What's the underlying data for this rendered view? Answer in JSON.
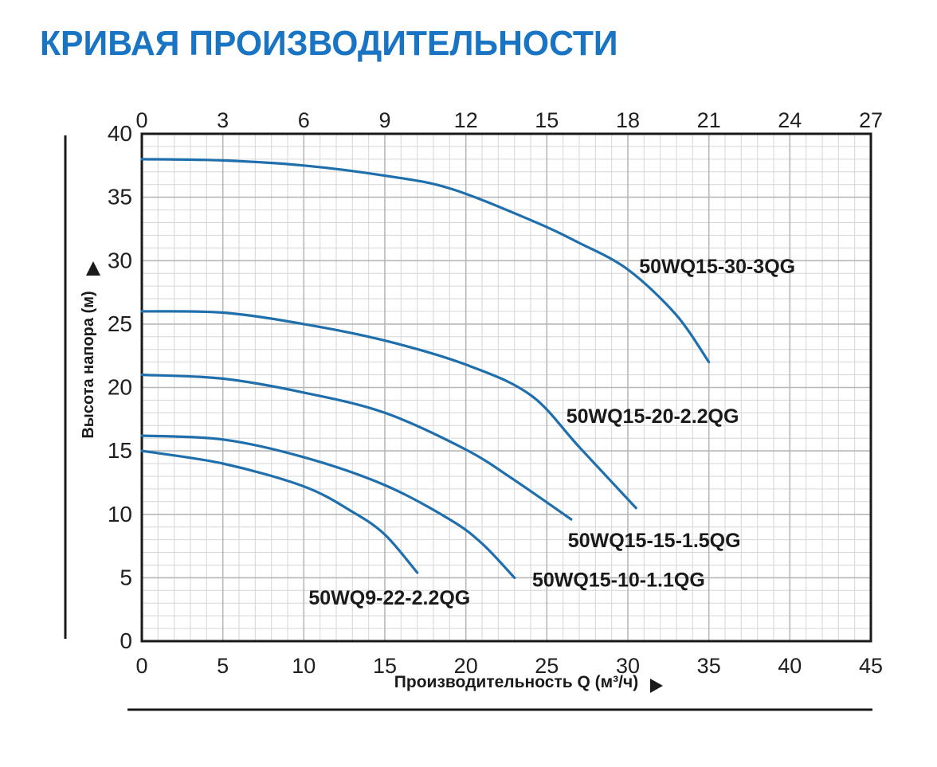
{
  "page": {
    "title": "КРИВАЯ ПРОИЗВОДИТЕЛЬНОСТИ"
  },
  "colors": {
    "title": "#1a74c4",
    "curve": "#1f6fad",
    "grid_minor": "#d6d6d6",
    "grid_major": "#b7b7b7",
    "axis_border": "#1a1a1a",
    "tick_text": "#1f1f1f",
    "label_text": "#1a1a1a"
  },
  "chart_data": {
    "type": "line",
    "title": "КРИВАЯ ПРОИЗВОДИТЕЛЬНОСТИ",
    "x_bottom": {
      "label": "Производительность Q (м³/ч)",
      "range": [
        0,
        45
      ],
      "ticks": [
        0,
        5,
        10,
        15,
        20,
        25,
        30,
        35,
        40,
        45
      ]
    },
    "x_top": {
      "label": "",
      "range": [
        0,
        27
      ],
      "ticks": [
        0,
        3,
        6,
        9,
        12,
        15,
        18,
        21,
        24,
        27
      ]
    },
    "y_left": {
      "label": "Высота напора (м)",
      "range": [
        0,
        40
      ],
      "ticks": [
        0,
        5,
        10,
        15,
        20,
        25,
        30,
        35,
        40
      ]
    },
    "grid": {
      "minor_step": 1,
      "major_step": 5,
      "grid_on": true
    },
    "legend_position": "inline-labels",
    "series": [
      {
        "name": "50WQ15-30-3QG",
        "points": [
          [
            0,
            38
          ],
          [
            5,
            37.9
          ],
          [
            10,
            37.5
          ],
          [
            15,
            36.7
          ],
          [
            19,
            35.7
          ],
          [
            24,
            33.2
          ],
          [
            27,
            31.4
          ],
          [
            30,
            29.3
          ],
          [
            33,
            25.7
          ],
          [
            35,
            22
          ]
        ],
        "label_pos": [
          30.7,
          29.0
        ]
      },
      {
        "name": "50WQ15-20-2.2QG",
        "points": [
          [
            0,
            26
          ],
          [
            5,
            25.9
          ],
          [
            10,
            25
          ],
          [
            15,
            23.7
          ],
          [
            20,
            21.8
          ],
          [
            24,
            19.4
          ],
          [
            27,
            15.3
          ],
          [
            30.5,
            10.5
          ]
        ],
        "label_pos": [
          26.2,
          17.2
        ]
      },
      {
        "name": "50WQ15-15-1.5QG",
        "points": [
          [
            0,
            21
          ],
          [
            5,
            20.7
          ],
          [
            10,
            19.6
          ],
          [
            15,
            18
          ],
          [
            20,
            15.1
          ],
          [
            23,
            12.7
          ],
          [
            26.5,
            9.6
          ]
        ],
        "label_pos": [
          26.3,
          7.4
        ]
      },
      {
        "name": "50WQ15-10-1.1QG",
        "points": [
          [
            0,
            16.2
          ],
          [
            5,
            15.9
          ],
          [
            10,
            14.5
          ],
          [
            15,
            12.3
          ],
          [
            19,
            9.6
          ],
          [
            21,
            7.7
          ],
          [
            23,
            5
          ]
        ],
        "label_pos": [
          24.1,
          4.3
        ]
      },
      {
        "name": "50WQ9-22-2.2QG",
        "points": [
          [
            0,
            15
          ],
          [
            5,
            14
          ],
          [
            10,
            12.2
          ],
          [
            13,
            10.2
          ],
          [
            15,
            8.4
          ],
          [
            17,
            5.4
          ]
        ],
        "label_pos": [
          10.3,
          2.9
        ]
      }
    ]
  }
}
